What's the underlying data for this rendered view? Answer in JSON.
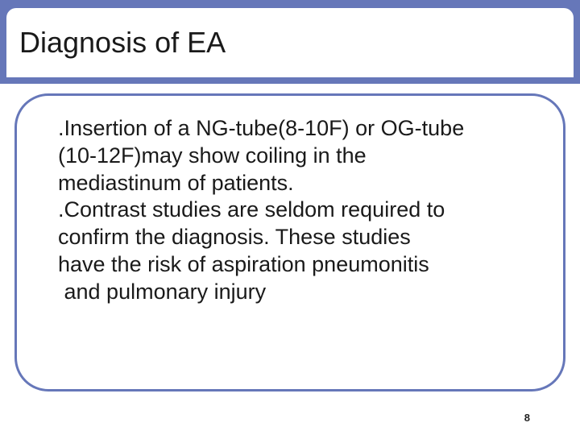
{
  "colors": {
    "band": "#6677b9",
    "frame_border": "#6677b9",
    "background": "#ffffff",
    "text": "#1a1a1a"
  },
  "typography": {
    "title_fontsize": 36,
    "body_fontsize": 27,
    "page_number_fontsize": 13,
    "font_family": "Arial"
  },
  "layout": {
    "slide_w": 720,
    "slide_h": 540,
    "band_h": 104,
    "title_box_radius": 12,
    "frame_radius": 42,
    "frame_border_w": 3
  },
  "title": "Diagnosis of EA",
  "body_lines": [
    "  .Insertion of a NG-tube(8-10F) or OG-tube",
    "  (10-12F)may show coiling in the",
    "  mediastinum of patients.",
    "",
    "  .Contrast studies are seldom required to",
    "  confirm the diagnosis. These studies",
    "  have the risk of aspiration pneumonitis",
    "   and pulmonary injury"
  ],
  "page_number": "8"
}
